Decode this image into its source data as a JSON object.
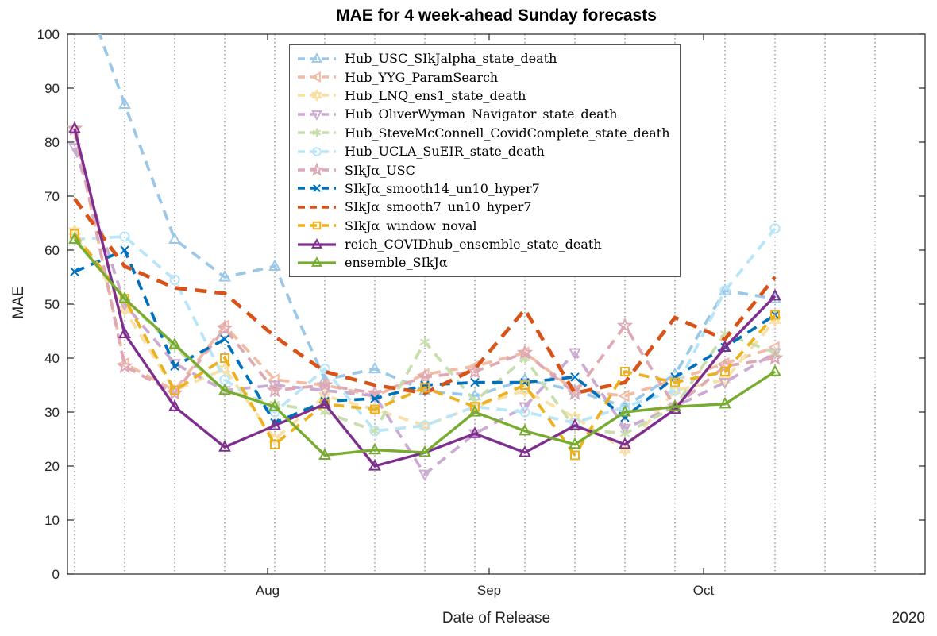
{
  "figure": {
    "title": "MAE for 4 week-ahead Sunday forecasts",
    "xlabel": "Date of Release",
    "ylabel": "MAE",
    "year_label": "2020"
  },
  "chart_data": {
    "type": "line",
    "title": "MAE for 4 week-ahead Sunday forecasts",
    "xlabel": "Date of Release",
    "ylabel": "MAE",
    "ylim": [
      0,
      100
    ],
    "yticks": [
      0,
      10,
      20,
      30,
      40,
      50,
      60,
      70,
      80,
      90,
      100
    ],
    "grid": "vertical-dotted-weekly",
    "legend_position": "upper-left-inside",
    "x_dates": [
      "Jul 05",
      "Jul 12",
      "Jul 19",
      "Jul 26",
      "Aug 02",
      "Aug 09",
      "Aug 16",
      "Aug 23",
      "Aug 30",
      "Sep 06",
      "Sep 13",
      "Sep 20",
      "Sep 27",
      "Oct 04",
      "Oct 11"
    ],
    "x_month_ticks": [
      {
        "day": 28,
        "label": "Aug"
      },
      {
        "day": 59,
        "label": "Sep"
      },
      {
        "day": 89,
        "label": "Oct"
      }
    ],
    "series": [
      {
        "name": "Hub_USC_SIkJalpha_state_death",
        "color": "#9CC8E8",
        "line_style": "dashed",
        "marker": "triangle-up",
        "values": [
          113,
          87,
          62,
          55,
          57,
          36,
          38,
          34,
          33,
          36,
          34,
          31,
          37,
          52.5,
          51
        ]
      },
      {
        "name": "Hub_YYG_ParamSearch",
        "color": "#F2BCA4",
        "line_style": "dashed",
        "marker": "triangle-left",
        "values": [
          82,
          39,
          34,
          46,
          36,
          35,
          33,
          37,
          38.5,
          41,
          34,
          33,
          36,
          39,
          42
        ]
      },
      {
        "name": "Hub_LNQ_ens1_state_death",
        "color": "#F8E0A6",
        "line_style": "dashed",
        "marker": "hexagram",
        "values": [
          63.5,
          49,
          34,
          38,
          25,
          33,
          30.5,
          27.5,
          31,
          34,
          29,
          23,
          34,
          36,
          47
        ]
      },
      {
        "name": "Hub_OliverWyman_Navigator_state_death",
        "color": "#CCABD2",
        "line_style": "dashed",
        "marker": "triangle-down",
        "values": [
          79,
          50,
          39,
          34,
          35,
          34,
          33,
          18.5,
          26,
          31,
          41,
          27,
          31,
          35.5,
          41
        ]
      },
      {
        "name": "Hub_SteveMcConnell_CovidComplete_state_death",
        "color": "#C9DEAD",
        "line_style": "dashed",
        "marker": "asterisk",
        "values": [
          62.5,
          51,
          42,
          34,
          31.5,
          30,
          26.5,
          43,
          32,
          40,
          27,
          26,
          31,
          44.5,
          41
        ]
      },
      {
        "name": "Hub_UCLA_SuEIR_state_death",
        "color": "#B8E5F8",
        "line_style": "dashed",
        "marker": "circle",
        "values": [
          62,
          62.5,
          54.5,
          36,
          30,
          38,
          26.5,
          27.5,
          31,
          30,
          28,
          31,
          34,
          52.5,
          64
        ]
      },
      {
        "name": "SIkJα_USC",
        "color": "#DFA9B4",
        "line_style": "dashed",
        "marker": "pentagram",
        "values": [
          82.5,
          38.5,
          33.5,
          45.5,
          34,
          35,
          33.5,
          36.5,
          37.5,
          41,
          33.5,
          46,
          31,
          38.5,
          40
        ]
      },
      {
        "name": "SIkJα_smooth14_un10_hyper7",
        "color": "#0072BD",
        "line_style": "dashed",
        "marker": "x",
        "values": [
          56,
          60,
          38.5,
          43.5,
          28,
          32,
          32.5,
          35,
          35.5,
          35.5,
          36.5,
          29,
          36.5,
          42,
          48
        ]
      },
      {
        "name": "SIkJα_smooth7_un10_hyper7",
        "color": "#D95319",
        "line_style": "dashed",
        "marker": "none",
        "values": [
          69.5,
          57,
          53,
          52,
          44,
          37.5,
          35,
          33.5,
          38,
          49,
          33.5,
          35.5,
          47.5,
          43.5,
          55
        ]
      },
      {
        "name": "SIkJα_window_noval",
        "color": "#EDB120",
        "line_style": "dashed",
        "marker": "square",
        "values": [
          63,
          51,
          34,
          40,
          24,
          31.5,
          30.5,
          34.5,
          31,
          35,
          22,
          37.5,
          35.5,
          37.5,
          48
        ]
      },
      {
        "name": "reich_COVIDhub_ensemble_state_death",
        "color": "#7E2F8E",
        "line_style": "solid",
        "marker": "triangle-up",
        "values": [
          82.5,
          44.5,
          31,
          23.5,
          27.5,
          31.5,
          20,
          22.5,
          26,
          22.5,
          27.5,
          24,
          30.5,
          42,
          51.5
        ]
      },
      {
        "name": "ensemble_SIkJα",
        "color": "#77AC30",
        "line_style": "solid",
        "marker": "triangle-up",
        "values": [
          62,
          51,
          42.5,
          34,
          31,
          22,
          23,
          22.5,
          30,
          26.5,
          24,
          30,
          31,
          31.5,
          37.5
        ]
      }
    ]
  }
}
